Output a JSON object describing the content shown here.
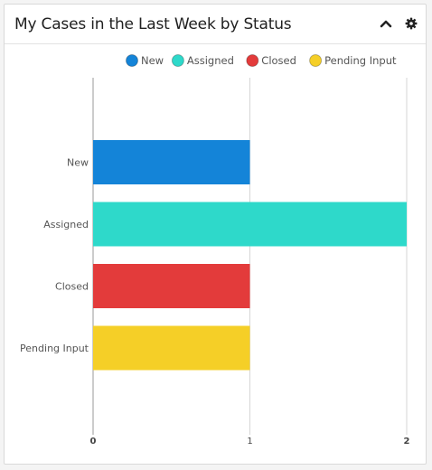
{
  "dashlet": {
    "title": "My Cases in the Last Week by Status",
    "collapse_icon": "chevron-up-icon",
    "settings_icon": "gear-icon"
  },
  "chart_data": {
    "type": "bar",
    "orientation": "horizontal",
    "categories": [
      "New",
      "Assigned",
      "Closed",
      "Pending Input"
    ],
    "values": [
      1,
      2,
      1,
      1
    ],
    "colors": [
      "#1484d8",
      "#2ed9ca",
      "#e33b3b",
      "#f5cf27"
    ],
    "title": "",
    "xlabel": "",
    "ylabel": "",
    "xlim": [
      0,
      2
    ],
    "xticks": [
      "0",
      "1",
      "2"
    ],
    "legend": {
      "placement": "top-right",
      "entries": [
        "New",
        "Assigned",
        "Closed",
        "Pending Input"
      ]
    },
    "grid": true
  }
}
